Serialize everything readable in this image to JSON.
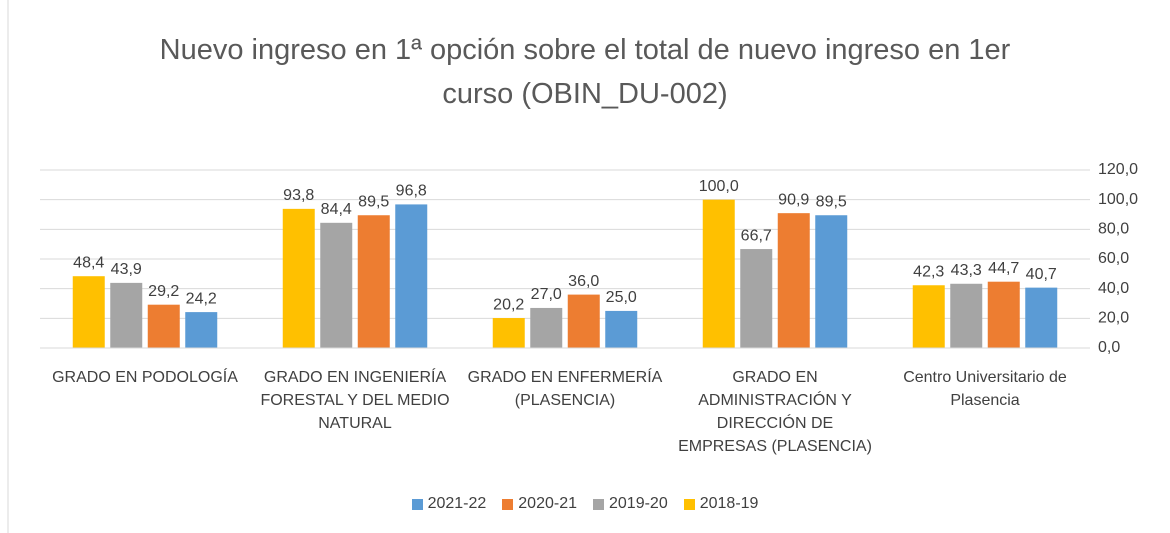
{
  "chart_data": {
    "type": "bar",
    "title": "Nuevo ingreso en 1ª opción sobre el total de nuevo ingreso en 1er curso (OBIN_DU-002)",
    "categories": [
      "GRADO EN PODOLOGÍA",
      "GRADO EN INGENIERÍA FORESTAL Y DEL MEDIO NATURAL",
      "GRADO EN ENFERMERÍA (PLASENCIA)",
      "GRADO EN ADMINISTRACIÓN Y DIRECCIÓN DE EMPRESAS (PLASENCIA)",
      "Centro Universitario de Plasencia"
    ],
    "series": [
      {
        "name": "2021-22",
        "color": "#5b9bd5",
        "values": [
          24.2,
          96.8,
          25.0,
          89.5,
          40.7
        ],
        "value_labels": [
          "24,2",
          "96,8",
          "25,0",
          "89,5",
          "40,7"
        ]
      },
      {
        "name": "2020-21",
        "color": "#ed7d31",
        "values": [
          29.2,
          89.5,
          36.0,
          90.9,
          44.7
        ],
        "value_labels": [
          "29,2",
          "89,5",
          "36,0",
          "90,9",
          "44,7"
        ]
      },
      {
        "name": "2019-20",
        "color": "#a5a5a5",
        "values": [
          43.9,
          84.4,
          27.0,
          66.7,
          43.3
        ],
        "value_labels": [
          "43,9",
          "84,4",
          "27,0",
          "66,7",
          "43,3"
        ]
      },
      {
        "name": "2018-19",
        "color": "#ffc000",
        "values": [
          48.4,
          93.8,
          20.2,
          100.0,
          42.3
        ],
        "value_labels": [
          "48,4",
          "93,8",
          "20,2",
          "100,0",
          "42,3"
        ]
      }
    ],
    "ylim": [
      0,
      120
    ],
    "yticks": [
      {
        "value": 0,
        "label": "0,0"
      },
      {
        "value": 20,
        "label": "20,0"
      },
      {
        "value": 40,
        "label": "40,0"
      },
      {
        "value": 60,
        "label": "60,0"
      },
      {
        "value": 80,
        "label": "80,0"
      },
      {
        "value": 100,
        "label": "100,0"
      },
      {
        "value": 120,
        "label": "120,0"
      }
    ],
    "grid": true,
    "legend": "bottom"
  }
}
